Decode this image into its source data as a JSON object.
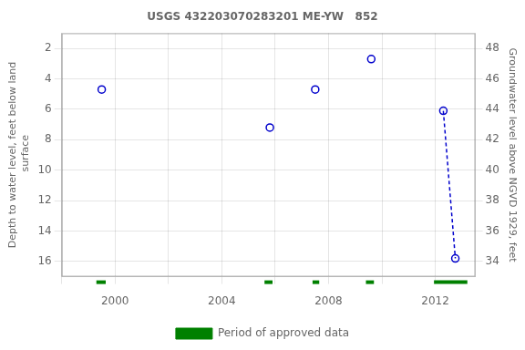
{
  "chart_data": {
    "type": "scatter",
    "title": "USGS 432203070283201 ME-YW   852",
    "y_label": "Depth to water level, feet below land\n surface",
    "y2_label": "Groundwater level above NGVD 1929, feet",
    "xlim": [
      1998.0,
      2013.5
    ],
    "xticks": [
      {
        "value": 1998,
        "label": null
      },
      2000,
      {
        "value": 2002,
        "label": null
      },
      2004,
      {
        "value": 2006,
        "label": null
      },
      2008,
      {
        "value": 2010,
        "label": null
      },
      2012
    ],
    "ylim": [
      17.0,
      1.0
    ],
    "yticks": [
      2,
      4,
      6,
      8,
      10,
      12,
      14,
      16
    ],
    "y2lim": [
      33.0,
      49.0
    ],
    "y2ticks": [
      34,
      36,
      38,
      40,
      42,
      44,
      46,
      48
    ],
    "grid": true,
    "legend": "bottom",
    "series": [
      {
        "type": "scatter",
        "marker": "circle",
        "color": "#0000cc",
        "x": [
          1999.5,
          2005.8,
          2007.5,
          2009.6,
          2012.3,
          2012.75
        ],
        "values": [
          4.7,
          7.2,
          4.7,
          2.7,
          6.1,
          15.8
        ]
      },
      {
        "type": "line",
        "line_style": "dashed",
        "color": "#0000cc",
        "x": [
          2012.3,
          2012.75
        ],
        "values": [
          6.1,
          15.8
        ]
      },
      {
        "name": "Period of approved data",
        "type": "interval",
        "color": "#008000",
        "periods": [
          [
            1999.3,
            1999.65
          ],
          [
            2005.6,
            2005.9
          ],
          [
            2007.4,
            2007.65
          ],
          [
            2009.4,
            2009.7
          ],
          [
            2011.95,
            2013.2
          ]
        ]
      }
    ]
  }
}
